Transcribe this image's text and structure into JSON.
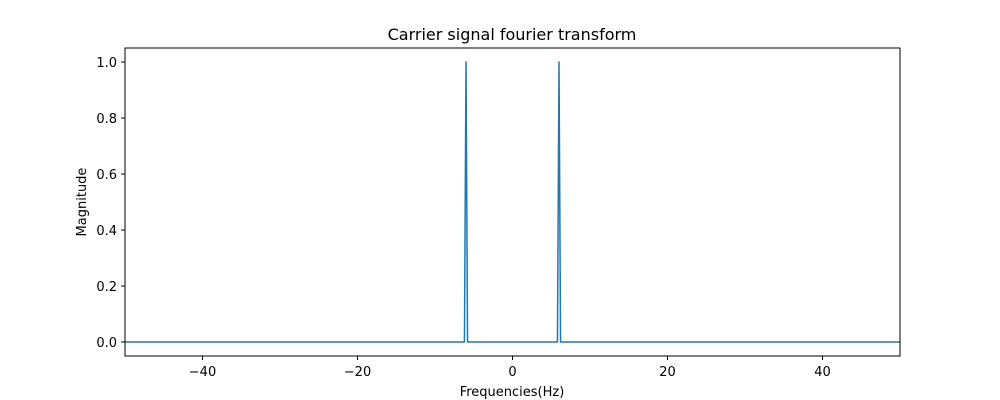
{
  "chart_data": {
    "type": "line",
    "title": "Carrier signal fourier transform",
    "xlabel": "Frequencies(Hz)",
    "ylabel": "Magnitude",
    "xlim": [
      -50,
      50
    ],
    "ylim": [
      -0.05,
      1.05
    ],
    "xticks": [
      -40,
      -20,
      0,
      20,
      40
    ],
    "xtick_labels": [
      "−40",
      "−20",
      "0",
      "20",
      "40"
    ],
    "yticks": [
      0.0,
      0.2,
      0.4,
      0.6,
      0.8,
      1.0
    ],
    "ytick_labels": [
      "0.0",
      "0.2",
      "0.4",
      "0.6",
      "0.8",
      "1.0"
    ],
    "grid": false,
    "line_color": "#1f77b4",
    "series": [
      {
        "x": [
          -50,
          -6.2,
          -6,
          -5.8,
          5.8,
          6,
          6.2,
          50
        ],
        "y": [
          0,
          0,
          1,
          0,
          0,
          1,
          0,
          0
        ]
      }
    ]
  }
}
